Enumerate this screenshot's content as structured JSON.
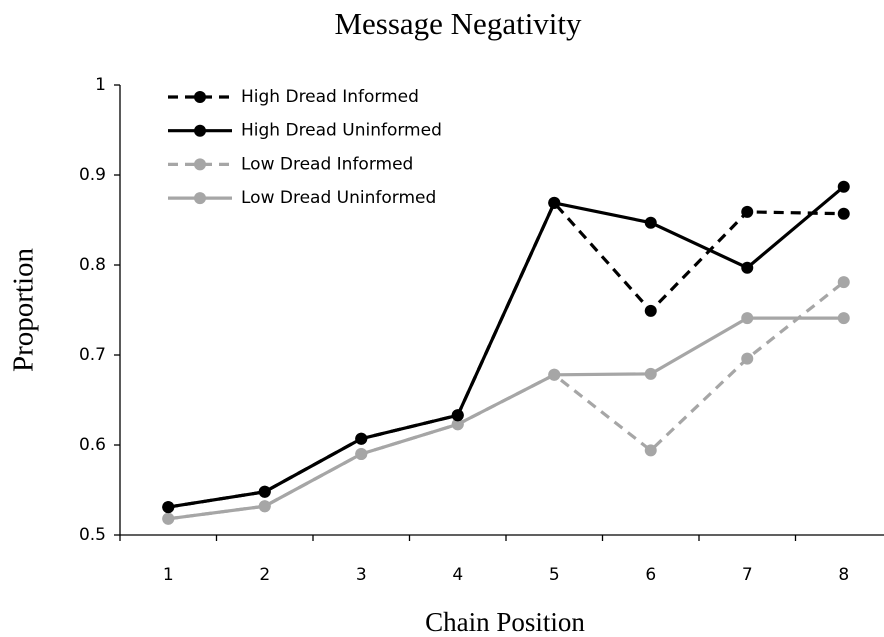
{
  "chart_data": {
    "type": "line",
    "title": "Message Negativity",
    "x_label": "Chain Position",
    "y_label": "Proportion",
    "categories": [
      "1",
      "2",
      "3",
      "4",
      "5",
      "6",
      "7",
      "8"
    ],
    "series": [
      {
        "name": "High Dread Informed",
        "color": "#000000",
        "dashed": true,
        "values": [
          0.531,
          0.548,
          0.607,
          0.633,
          0.869,
          0.749,
          0.859,
          0.857
        ]
      },
      {
        "name": "High Dread Uninformed",
        "color": "#000000",
        "dashed": false,
        "values": [
          0.531,
          0.548,
          0.607,
          0.633,
          0.869,
          0.847,
          0.797,
          0.887
        ]
      },
      {
        "name": "Low Dread Informed",
        "color": "#a6a6a6",
        "dashed": true,
        "values": [
          0.518,
          0.532,
          0.59,
          0.623,
          0.678,
          0.594,
          0.696,
          0.781
        ]
      },
      {
        "name": "Low Dread Uninformed",
        "color": "#a6a6a6",
        "dashed": false,
        "values": [
          0.518,
          0.532,
          0.59,
          0.623,
          0.678,
          0.679,
          0.741,
          0.741
        ]
      }
    ],
    "ylim": [
      0.5,
      1
    ],
    "yticks": [
      0.5,
      0.6,
      0.7,
      0.8,
      0.9,
      1
    ],
    "grid": false,
    "legend": "top-left"
  }
}
